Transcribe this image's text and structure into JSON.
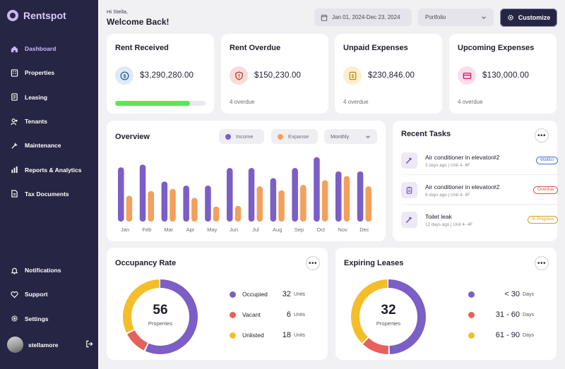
{
  "app": {
    "name": "Rentspot"
  },
  "sidebar": {
    "items": [
      {
        "label": "Dashboard",
        "icon": "home-icon",
        "active": true
      },
      {
        "label": "Properties",
        "icon": "building-icon"
      },
      {
        "label": "Leasing",
        "icon": "document-icon"
      },
      {
        "label": "Tenants",
        "icon": "users-icon"
      },
      {
        "label": "Maintenance",
        "icon": "wrench-icon"
      },
      {
        "label": "Reports & Analytics",
        "icon": "chart-icon"
      },
      {
        "label": "Tax Documents",
        "icon": "file-icon"
      }
    ],
    "bottom_items": [
      {
        "label": "Notifications",
        "icon": "bell-icon"
      },
      {
        "label": "Support",
        "icon": "support-icon"
      },
      {
        "label": "Settings",
        "icon": "gear-icon"
      }
    ],
    "user": {
      "name": "stellamore"
    }
  },
  "header": {
    "greeting": "Hi Stella,",
    "welcome": "Welcome Back!",
    "date_range": "Jan 01, 2024-Dec 23, 2024",
    "portfolio": "Portfolio",
    "customize": "Customize"
  },
  "stats": [
    {
      "title": "Rent Received",
      "value": "$3,290,280.00",
      "icon": "dollar-icon",
      "progress": 0.83,
      "colors": {
        "bg": "#dfeaf6",
        "fg": "#2c5aa0"
      }
    },
    {
      "title": "Rent Overdue",
      "value": "$150,230.00",
      "sub": "4 overdue",
      "icon": "shield-alert-icon",
      "colors": {
        "bg": "#f7dcdc",
        "fg": "#c0392b"
      }
    },
    {
      "title": "Unpaid Expenses",
      "value": "$230,846.00",
      "sub": "4 overdue",
      "icon": "cash-icon",
      "colors": {
        "bg": "#fbefcf",
        "fg": "#c28a0b"
      }
    },
    {
      "title": "Upcoming Expenses",
      "value": "$130,000.00",
      "sub": "4 overdue",
      "icon": "card-icon",
      "colors": {
        "bg": "#fadcea",
        "fg": "#c2185b"
      }
    }
  ],
  "overview": {
    "title": "Overview",
    "legend_income": "Income",
    "legend_expense": "Expanse",
    "period": "Monthly"
  },
  "chart_data": {
    "type": "bar",
    "categories": [
      "Jan",
      "Feb",
      "Mar",
      "Apr",
      "May",
      "Jun",
      "Jul",
      "Aug",
      "Sep",
      "Oct",
      "Nov",
      "Dec"
    ],
    "series": [
      {
        "name": "Income",
        "color": "#7b5ec6",
        "values": [
          80,
          84,
          59,
          53,
          53,
          79,
          79,
          64,
          79,
          95,
          74,
          74
        ]
      },
      {
        "name": "Expanse",
        "color": "#f2a05c",
        "values": [
          38,
          45,
          48,
          35,
          22,
          23,
          52,
          46,
          54,
          61,
          67,
          52
        ]
      }
    ],
    "ylim": [
      0,
      100
    ],
    "grid": false
  },
  "tasks": {
    "title": "Recent Tasks",
    "items": [
      {
        "title": "Air conditioner in elevator#2",
        "time": "3 days ago",
        "unit": "Unit 4- 4F",
        "status": "Waitlist",
        "icon": "hammer-icon",
        "color": "#4a6fd1"
      },
      {
        "title": "Air conditioner in elevator#2",
        "time": "6 days ago",
        "unit": "Unit 4- 4F",
        "status": "Overdue",
        "icon": "clipboard-icon",
        "color": "#d9534f"
      },
      {
        "title": "Toilet leak",
        "time": "12 days ago",
        "unit": "Unit 4- 4F",
        "status": "In Progress",
        "icon": "hammer-icon",
        "color": "#d4a017"
      }
    ]
  },
  "occupancy": {
    "title": "Occupancy Rate",
    "total": "56",
    "total_label": "Properties",
    "segments": [
      {
        "label": "Occupied",
        "value": "32",
        "unit": "Units",
        "color": "#7b5ec6",
        "share": 32
      },
      {
        "label": "Vacant",
        "value": "6",
        "unit": "Units",
        "color": "#e8605b",
        "share": 6
      },
      {
        "label": "Unlisted",
        "value": "18",
        "unit": "Units",
        "color": "#f4be2a",
        "share": 18
      }
    ]
  },
  "leases": {
    "title": "Expiring Leases",
    "total": "32",
    "total_label": "Properties",
    "segments": [
      {
        "label": "< 30",
        "unit": "Days",
        "color": "#7b5ec6",
        "share": 16
      },
      {
        "label": "31 - 60",
        "unit": "Days",
        "color": "#e8605b",
        "share": 4
      },
      {
        "label": "61 - 90",
        "unit": "Days",
        "color": "#f4be2a",
        "share": 12
      }
    ]
  }
}
